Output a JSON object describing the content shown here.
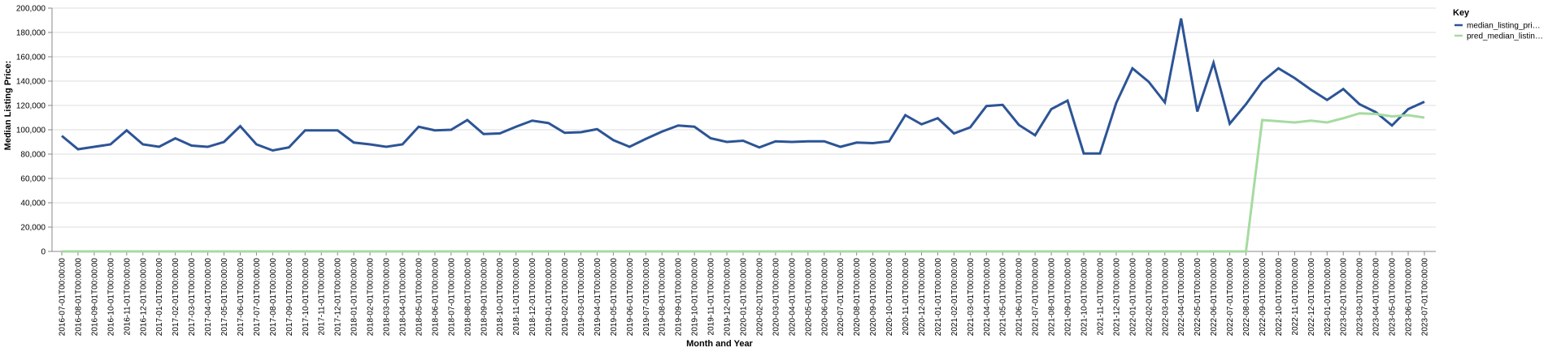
{
  "chart_data": {
    "type": "line",
    "x_label": "Month and Year",
    "y_label": "Median Listing Price:",
    "legend_title": "Key",
    "legend_position": "right",
    "grid": true,
    "categories": [
      "2016-07-01T00:00:00",
      "2016-08-01T00:00:00",
      "2016-09-01T00:00:00",
      "2016-10-01T00:00:00",
      "2016-11-01T00:00:00",
      "2016-12-01T00:00:00",
      "2017-01-01T00:00:00",
      "2017-02-01T00:00:00",
      "2017-03-01T00:00:00",
      "2017-04-01T00:00:00",
      "2017-05-01T00:00:00",
      "2017-06-01T00:00:00",
      "2017-07-01T00:00:00",
      "2017-08-01T00:00:00",
      "2017-09-01T00:00:00",
      "2017-10-01T00:00:00",
      "2017-11-01T00:00:00",
      "2017-12-01T00:00:00",
      "2018-01-01T00:00:00",
      "2018-02-01T00:00:00",
      "2018-03-01T00:00:00",
      "2018-04-01T00:00:00",
      "2018-05-01T00:00:00",
      "2018-06-01T00:00:00",
      "2018-07-01T00:00:00",
      "2018-08-01T00:00:00",
      "2018-09-01T00:00:00",
      "2018-10-01T00:00:00",
      "2018-11-01T00:00:00",
      "2018-12-01T00:00:00",
      "2019-01-01T00:00:00",
      "2019-02-01T00:00:00",
      "2019-03-01T00:00:00",
      "2019-04-01T00:00:00",
      "2019-05-01T00:00:00",
      "2019-06-01T00:00:00",
      "2019-07-01T00:00:00",
      "2019-08-01T00:00:00",
      "2019-09-01T00:00:00",
      "2019-10-01T00:00:00",
      "2019-11-01T00:00:00",
      "2019-12-01T00:00:00",
      "2020-01-01T00:00:00",
      "2020-02-01T00:00:00",
      "2020-03-01T00:00:00",
      "2020-04-01T00:00:00",
      "2020-05-01T00:00:00",
      "2020-06-01T00:00:00",
      "2020-07-01T00:00:00",
      "2020-08-01T00:00:00",
      "2020-09-01T00:00:00",
      "2020-10-01T00:00:00",
      "2020-11-01T00:00:00",
      "2020-12-01T00:00:00",
      "2021-01-01T00:00:00",
      "2021-02-01T00:00:00",
      "2021-03-01T00:00:00",
      "2021-04-01T00:00:00",
      "2021-05-01T00:00:00",
      "2021-06-01T00:00:00",
      "2021-07-01T00:00:00",
      "2021-08-01T00:00:00",
      "2021-09-01T00:00:00",
      "2021-10-01T00:00:00",
      "2021-11-01T00:00:00",
      "2021-12-01T00:00:00",
      "2022-01-01T00:00:00",
      "2022-02-01T00:00:00",
      "2022-03-01T00:00:00",
      "2022-04-01T00:00:00",
      "2022-05-01T00:00:00",
      "2022-06-01T00:00:00",
      "2022-07-01T00:00:00",
      "2022-08-01T00:00:00",
      "2022-09-01T00:00:00",
      "2022-10-01T00:00:00",
      "2022-11-01T00:00:00",
      "2022-12-01T00:00:00",
      "2023-01-01T00:00:00",
      "2023-02-01T00:00:00",
      "2023-03-01T00:00:00",
      "2023-04-01T00:00:00",
      "2023-05-01T00:00:00",
      "2023-06-01T00:00:00",
      "2023-07-01T00:00:00"
    ],
    "series": [
      {
        "name": "median_listing_pri…",
        "color": "#2c5496",
        "values": [
          95000,
          84000,
          86000,
          88000,
          99500,
          88000,
          86000,
          93000,
          87000,
          86000,
          90000,
          103000,
          88000,
          83000,
          85500,
          99500,
          99500,
          99500,
          89500,
          88000,
          86000,
          88000,
          102500,
          99500,
          100000,
          108000,
          96500,
          97000,
          102500,
          107500,
          105500,
          97500,
          98000,
          100500,
          91500,
          86000,
          92500,
          98500,
          103500,
          102500,
          93000,
          90000,
          91000,
          85500,
          90500,
          90000,
          90500,
          90500,
          86000,
          89500,
          89000,
          90500,
          112000,
          104500,
          109500,
          97000,
          102000,
          119500,
          120500,
          104000,
          95500,
          117000,
          124000,
          80500,
          80500,
          122000,
          150500,
          139500,
          122500,
          191500,
          115000,
          155000,
          105000,
          121000,
          139500,
          150500,
          142500,
          133000,
          124500,
          133500,
          121000,
          114500,
          103500,
          117000,
          123000
        ]
      },
      {
        "name": "pred_median_listin…",
        "color": "#a6dba0",
        "values": [
          0,
          0,
          0,
          0,
          0,
          0,
          0,
          0,
          0,
          0,
          0,
          0,
          0,
          0,
          0,
          0,
          0,
          0,
          0,
          0,
          0,
          0,
          0,
          0,
          0,
          0,
          0,
          0,
          0,
          0,
          0,
          0,
          0,
          0,
          0,
          0,
          0,
          0,
          0,
          0,
          0,
          0,
          0,
          0,
          0,
          0,
          0,
          0,
          0,
          0,
          0,
          0,
          0,
          0,
          0,
          0,
          0,
          0,
          0,
          0,
          0,
          0,
          0,
          0,
          0,
          0,
          0,
          0,
          0,
          0,
          0,
          0,
          0,
          0,
          108000,
          107000,
          106000,
          107500,
          106000,
          109500,
          113500,
          113000,
          111000,
          112000,
          110000
        ]
      }
    ],
    "ylim": [
      0,
      200000
    ],
    "yticks": [
      0,
      {
        "value": 20000,
        "label": "20,000"
      },
      {
        "value": 40000,
        "label": "40,000"
      },
      {
        "value": 60000,
        "label": "60,000"
      },
      {
        "value": 80000,
        "label": "80,000"
      },
      {
        "value": 100000,
        "label": "100,000"
      },
      {
        "value": 120000,
        "label": "120,000"
      },
      {
        "value": 140000,
        "label": "140,000"
      },
      {
        "value": 160000,
        "label": "160,000"
      },
      {
        "value": 180000,
        "label": "180,000"
      },
      {
        "value": 200000,
        "label": "200,000"
      }
    ]
  }
}
